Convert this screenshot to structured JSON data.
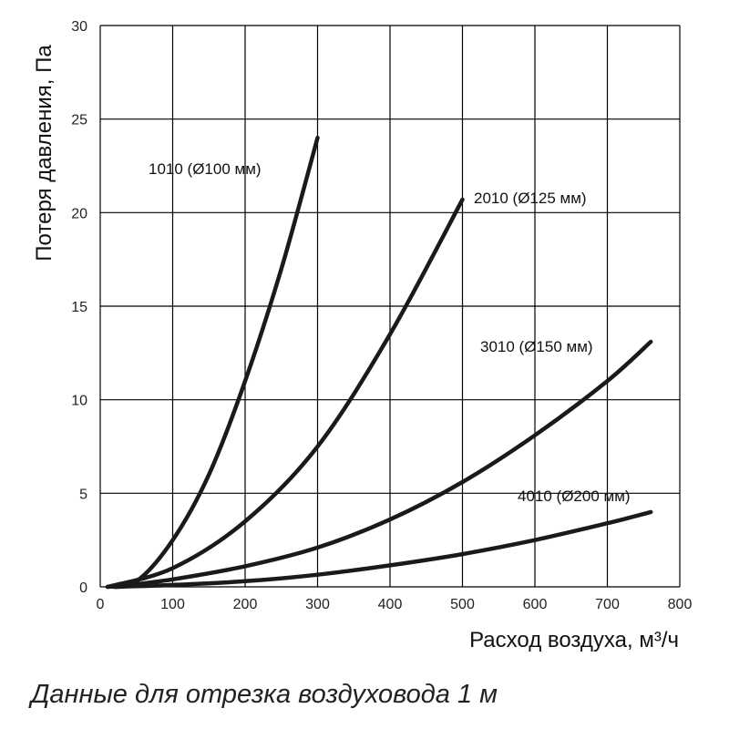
{
  "chart_data": {
    "type": "line",
    "xlabel": "Расход воздуха, м³/ч",
    "ylabel": "Потеря давления, Па",
    "xlim": [
      0,
      800
    ],
    "ylim": [
      0,
      30
    ],
    "x_ticks": [
      0,
      100,
      200,
      300,
      400,
      500,
      600,
      700,
      800
    ],
    "y_ticks": [
      0,
      5,
      10,
      15,
      20,
      25,
      30
    ],
    "grid": true,
    "line_color": "#1a1a1a",
    "series": [
      {
        "name": "1010 (Ø100 мм)",
        "x": [
          10,
          50,
          100,
          150,
          200,
          250,
          300
        ],
        "y": [
          0,
          0.3,
          2.5,
          6.0,
          11.0,
          17.0,
          24.0
        ]
      },
      {
        "name": "2010 (Ø125 мм)",
        "x": [
          10,
          100,
          200,
          300,
          400,
          500
        ],
        "y": [
          0,
          1.0,
          3.5,
          7.5,
          13.5,
          20.7
        ]
      },
      {
        "name": "3010 (Ø150 мм)",
        "x": [
          20,
          100,
          200,
          300,
          400,
          500,
          600,
          700,
          760
        ],
        "y": [
          0,
          0.4,
          1.1,
          2.1,
          3.6,
          5.6,
          8.1,
          11.0,
          13.1
        ]
      },
      {
        "name": "4010 (Ø200 мм)",
        "x": [
          20,
          100,
          200,
          300,
          400,
          500,
          600,
          700,
          760
        ],
        "y": [
          0,
          0.1,
          0.3,
          0.65,
          1.15,
          1.75,
          2.5,
          3.4,
          4.0
        ]
      }
    ]
  },
  "caption": "Данные для отрезка воздуховода 1 м"
}
